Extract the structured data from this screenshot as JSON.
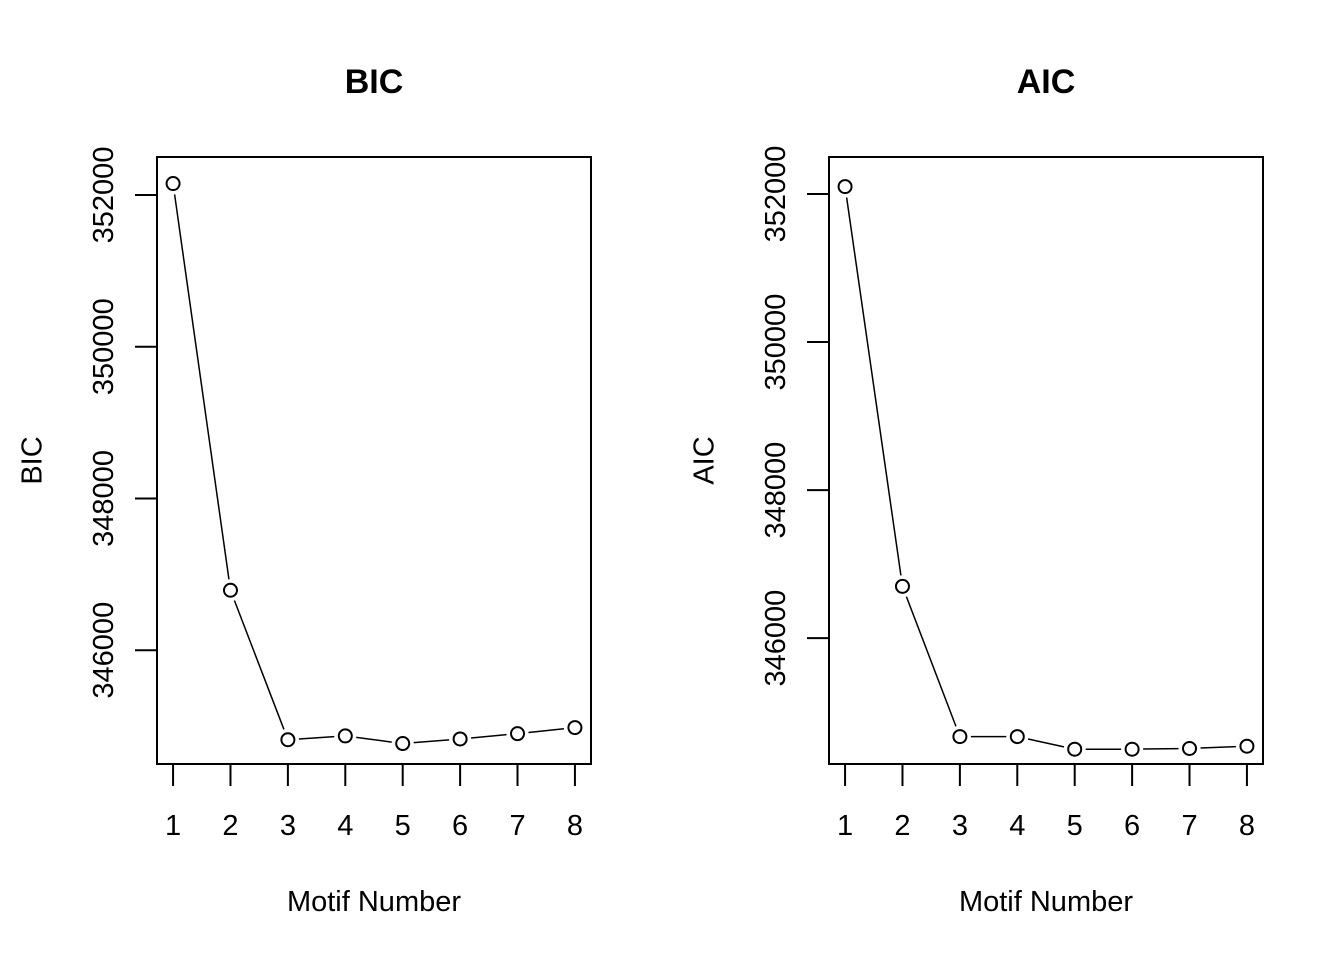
{
  "chart_data": [
    {
      "type": "line",
      "title": "BIC",
      "xlabel": "Motif Number",
      "ylabel": "BIC",
      "x": [
        1,
        2,
        3,
        4,
        5,
        6,
        7,
        8
      ],
      "series": [
        {
          "values": [
            352150,
            346790,
            344820,
            344870,
            344770,
            344830,
            344900,
            344980
          ]
        }
      ],
      "xticks": [
        "1",
        "2",
        "3",
        "4",
        "5",
        "6",
        "7",
        "8"
      ],
      "yticks": [
        346000,
        348000,
        350000,
        352000
      ],
      "ytick_labels": [
        "346000",
        "348000",
        "350000",
        "352000"
      ],
      "ylim": [
        344500,
        352500
      ],
      "grid": false
    },
    {
      "type": "line",
      "title": "AIC",
      "xlabel": "Motif Number",
      "ylabel": "AIC",
      "x": [
        1,
        2,
        3,
        4,
        5,
        6,
        7,
        8
      ],
      "series": [
        {
          "values": [
            352100,
            346700,
            344670,
            344670,
            344500,
            344500,
            344510,
            344540
          ]
        }
      ],
      "xticks": [
        "1",
        "2",
        "3",
        "4",
        "5",
        "6",
        "7",
        "8"
      ],
      "yticks": [
        346000,
        348000,
        350000,
        352000
      ],
      "ytick_labels": [
        "346000",
        "348000",
        "350000",
        "352000"
      ],
      "ylim": [
        344300,
        352500
      ],
      "grid": false
    }
  ]
}
